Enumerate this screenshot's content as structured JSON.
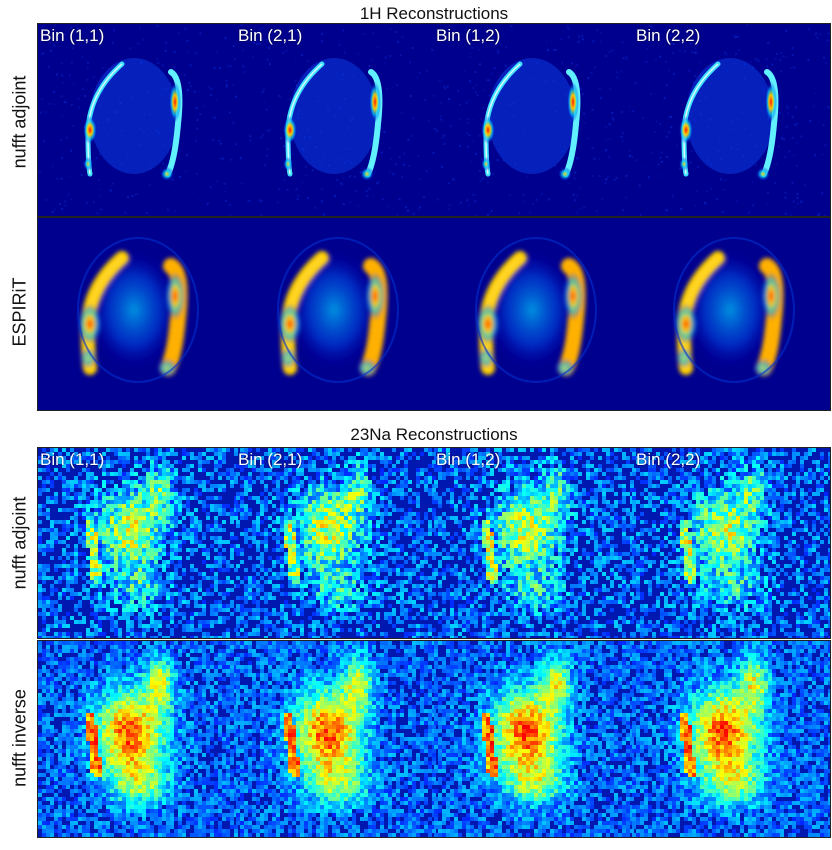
{
  "sections": [
    {
      "title": "1H Reconstructions",
      "rows": [
        {
          "label": "nufft adjoint"
        },
        {
          "label": "ESPIRiT"
        }
      ]
    },
    {
      "title": "23Na Reconstructions",
      "rows": [
        {
          "label": "nufft adjoint"
        },
        {
          "label": "nufft inverse"
        }
      ]
    }
  ],
  "bins": [
    "Bin (1,1)",
    "Bin (2,1)",
    "Bin (1,2)",
    "Bin (2,2)"
  ],
  "colormap": {
    "name": "jet",
    "background": "#00008f",
    "low": "#0000c8",
    "mid": "#00c8ff",
    "high": "#ffd000",
    "peak": "#ff1a00"
  }
}
